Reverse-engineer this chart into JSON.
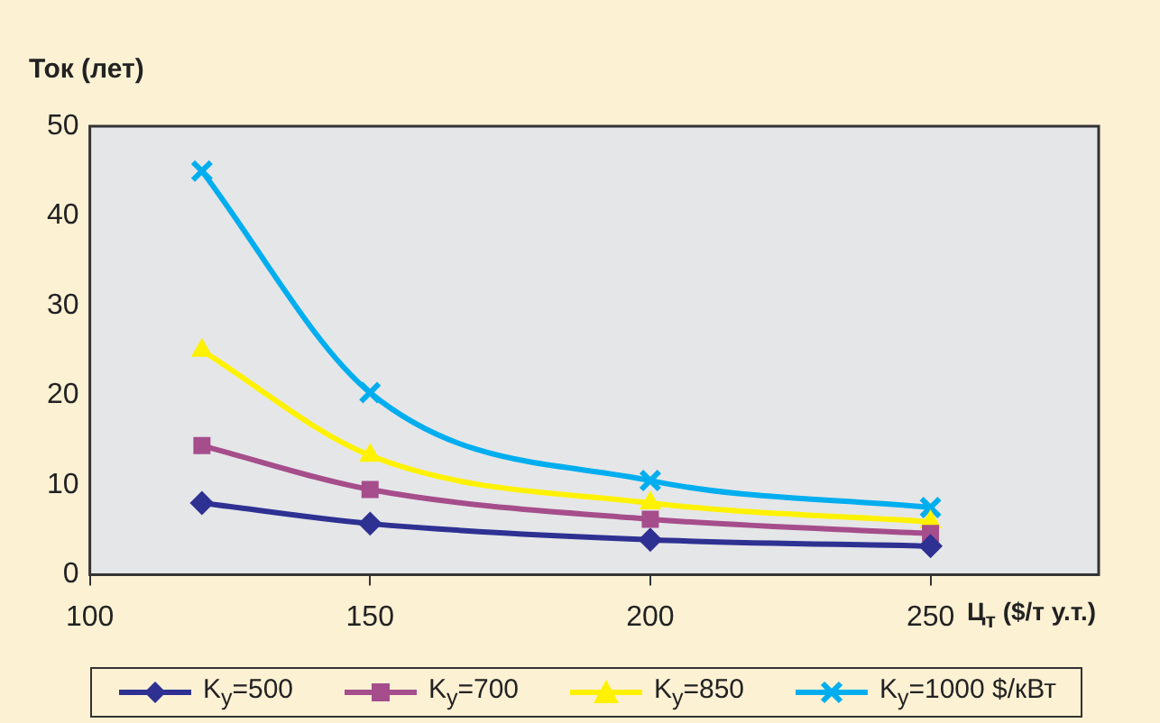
{
  "chart_data": {
    "type": "line",
    "ylabel": "Ток (лет)",
    "xlabel": "Ц$_{т}$ ($/т у.т.)",
    "x": [
      120,
      150,
      200,
      250
    ],
    "xlim": [
      100,
      280
    ],
    "xticks": [
      100,
      150,
      200,
      250
    ],
    "ylim": [
      0,
      50
    ],
    "yticks": [
      0,
      10,
      20,
      30,
      40,
      50
    ],
    "grid": false,
    "legend": "bottom",
    "series": [
      {
        "name": "K$_{у}$=500",
        "color": "#2e3192",
        "marker": "diamond",
        "values": [
          8,
          5.7,
          3.9,
          3.2
        ]
      },
      {
        "name": "K$_{у}$=700",
        "color": "#a64d8c",
        "marker": "square",
        "values": [
          14.4,
          9.5,
          6.2,
          4.6
        ]
      },
      {
        "name": "K$_{у}$=850",
        "color": "#fff200",
        "marker": "triangle",
        "values": [
          25,
          13.3,
          8,
          5.9
        ]
      },
      {
        "name": "K$_{у}$=1000 $/кВт",
        "color": "#00aeef",
        "marker": "cross",
        "values": [
          45,
          20.3,
          10.5,
          7.5
        ]
      }
    ]
  }
}
